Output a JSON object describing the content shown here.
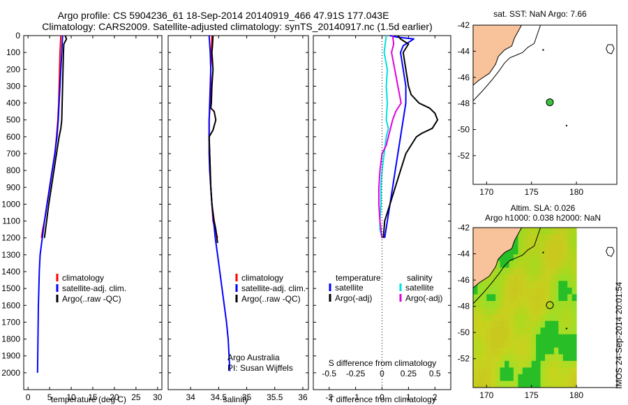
{
  "title_line1": "Argo profile: CS 5904236_61 18-Sep-2014 20140919_466 47.91S 177.043E",
  "title_line2": "Climatology: CARS2009. Satellite-adjusted climatology: synTS_20140917.nc (1.5d earlier)",
  "side_stamp": "IMOS 24-Sep-2014 20:01:54",
  "colors": {
    "climatology": "#ff0000",
    "satellite": "#0000ff",
    "argo": "#000000",
    "sal_satellite": "#00e0e0",
    "sal_argo": "#e000e0",
    "land": "#f8c39a",
    "float_marker": "#3cc43c"
  },
  "chart_data": [
    {
      "id": "temperature",
      "type": "line",
      "xlabel": "temperature (deg C)",
      "ylabel": "",
      "xlim": [
        -1,
        31
      ],
      "ylim": [
        0,
        2100
      ],
      "y_reversed": true,
      "xticks": [
        "0",
        "5",
        "10",
        "15",
        "20",
        "25",
        "30"
      ],
      "yticks": [
        "0",
        "100",
        "200",
        "300",
        "400",
        "500",
        "600",
        "700",
        "800",
        "900",
        "1000",
        "1100",
        "1200",
        "1300",
        "1400",
        "1500",
        "1600",
        "1700",
        "1800",
        "1900",
        "2000"
      ],
      "legend": [
        "climatology",
        "satellite-adj. clim.",
        "Argo(..raw -QC)"
      ],
      "series": [
        {
          "name": "climatology",
          "color": "#ff0000",
          "x": [
            7.6,
            7.5,
            7.4,
            7.3,
            7.2,
            7.1,
            6.9,
            6.6,
            6.2,
            5.6,
            5.0,
            4.4,
            3.8,
            3.4,
            3.1
          ],
          "y": [
            0,
            50,
            100,
            200,
            300,
            400,
            500,
            600,
            700,
            800,
            900,
            1000,
            1100,
            1150,
            1200
          ]
        },
        {
          "name": "satellite-adj. clim.",
          "color": "#0000ff",
          "x": [
            8.0,
            7.9,
            7.8,
            7.6,
            7.4,
            7.2,
            7.0,
            6.7,
            6.2,
            5.6,
            5.0,
            4.4,
            3.8,
            3.3,
            2.8,
            2.6,
            2.5,
            2.4,
            2.3,
            2.2
          ],
          "y": [
            0,
            50,
            100,
            200,
            300,
            400,
            500,
            600,
            700,
            800,
            900,
            1000,
            1100,
            1200,
            1300,
            1400,
            1500,
            1600,
            1800,
            2000
          ]
        },
        {
          "name": "Argo(..raw -QC)",
          "color": "#000000",
          "x": [
            8.6,
            8.9,
            8.3,
            8.2,
            8.1,
            8.0,
            7.9,
            7.8,
            7.6,
            7.2,
            6.6,
            6.0,
            5.4,
            4.8,
            4.3,
            3.8
          ],
          "y": [
            0,
            20,
            50,
            100,
            200,
            300,
            400,
            500,
            550,
            600,
            700,
            800,
            900,
            1000,
            1100,
            1200
          ]
        }
      ],
      "annotations": []
    },
    {
      "id": "salinity",
      "type": "line",
      "xlabel": "salinity",
      "xlim": [
        33.6,
        36.1
      ],
      "ylim": [
        0,
        2100
      ],
      "y_reversed": true,
      "xticks": [
        "34",
        "34.5",
        "35",
        "35.5",
        "36"
      ],
      "legend": [
        "climatology",
        "satellite-adj. clim.",
        "Argo(..raw -QC)"
      ],
      "series": [
        {
          "name": "climatology",
          "color": "#ff0000",
          "x": [
            34.38,
            34.37,
            34.36,
            34.36,
            34.35,
            34.34,
            34.33,
            34.33,
            34.33,
            34.34,
            34.35,
            34.36,
            34.38,
            34.4,
            34.44,
            34.48
          ],
          "y": [
            0,
            100,
            200,
            300,
            400,
            450,
            500,
            550,
            600,
            700,
            800,
            900,
            1000,
            1100,
            1150,
            1200
          ]
        },
        {
          "name": "satellite-adj. clim.",
          "color": "#0000ff",
          "x": [
            34.33,
            34.35,
            34.36,
            34.35,
            34.34,
            34.33,
            34.33,
            34.33,
            34.34,
            34.36,
            34.38,
            34.41,
            34.44,
            34.48,
            34.52,
            34.56,
            34.6,
            34.64,
            34.67,
            34.7
          ],
          "y": [
            0,
            100,
            200,
            300,
            400,
            500,
            600,
            700,
            800,
            900,
            1000,
            1100,
            1200,
            1300,
            1400,
            1500,
            1600,
            1700,
            1800,
            1990
          ]
        },
        {
          "name": "Argo(..raw -QC)",
          "color": "#000000",
          "x": [
            34.4,
            34.39,
            34.38,
            34.4,
            34.38,
            34.37,
            34.36,
            34.42,
            34.45,
            34.4,
            34.33,
            34.34,
            34.35,
            34.36,
            34.38,
            34.42,
            34.45,
            34.48
          ],
          "y": [
            0,
            60,
            100,
            200,
            300,
            400,
            430,
            450,
            500,
            560,
            600,
            700,
            800,
            900,
            1000,
            1100,
            1150,
            1230
          ]
        }
      ],
      "annotations": [
        "Argo Australia",
        "PI: Susan Wijffels"
      ]
    },
    {
      "id": "differences",
      "type": "line",
      "xlabel": "T difference from climatology",
      "xlabel_top": "S difference from climatology",
      "xlim": [
        -2.6,
        2.6
      ],
      "ylim": [
        0,
        2100
      ],
      "y_reversed": true,
      "xticks": [
        "-2",
        "-1",
        "0",
        "1",
        "2"
      ],
      "xticks_top": [
        "-0.5",
        "-0.25",
        "0",
        "0.25",
        "0.5"
      ],
      "legend_groups": [
        {
          "heading": "temperature",
          "items": [
            "satellite",
            "Argo(-adj)"
          ]
        },
        {
          "heading": "salinity",
          "items": [
            "satellite",
            "Argo(-adj)"
          ]
        }
      ],
      "series": [
        {
          "name": "temperature satellite",
          "color": "#0000ff",
          "x": [
            0.3,
            0.6,
            1.2,
            1.0,
            0.8,
            0.7,
            0.8,
            0.9,
            0.9,
            0.8,
            0.7,
            0.6,
            0.5,
            0.4,
            0.3,
            0.2,
            0.1
          ],
          "y": [
            0,
            10,
            20,
            40,
            60,
            100,
            200,
            300,
            400,
            500,
            600,
            700,
            800,
            900,
            1000,
            1100,
            1200
          ]
        },
        {
          "name": "temperature Argo(-adj)",
          "color": "#000000",
          "x": [
            0.6,
            0.7,
            1.0,
            0.8,
            0.9,
            1.0,
            1.1,
            1.4,
            1.8,
            2.0,
            2.1,
            1.9,
            1.5,
            1.3,
            1.1,
            0.9,
            0.7,
            0.5,
            0.3,
            0.1,
            0.05
          ],
          "y": [
            0,
            20,
            50,
            100,
            200,
            300,
            350,
            400,
            430,
            460,
            500,
            550,
            580,
            600,
            650,
            700,
            800,
            900,
            1000,
            1100,
            1200
          ]
        },
        {
          "name": "salinity satellite",
          "color": "#00e0e0",
          "x": [
            0.04,
            0.02,
            0.05,
            0.04,
            0.05,
            0.04,
            0.06,
            0.04,
            0.02,
            0.0,
            -0.01,
            -0.01,
            -0.02,
            -0.02,
            0.0
          ],
          "y": [
            0,
            100,
            200,
            300,
            400,
            500,
            550,
            600,
            700,
            800,
            900,
            1000,
            1100,
            1150,
            1200
          ]
        },
        {
          "name": "salinity Argo(-adj)",
          "color": "#e000e0",
          "x": [
            0.1,
            0.11,
            0.09,
            0.12,
            0.15,
            0.18,
            0.13,
            0.1,
            0.06,
            0.04,
            0.0,
            -0.02,
            -0.03,
            -0.03,
            -0.02,
            0.0
          ],
          "y": [
            0,
            50,
            100,
            200,
            300,
            400,
            450,
            500,
            600,
            650,
            700,
            800,
            900,
            1000,
            1100,
            1200
          ]
        }
      ],
      "annotations": []
    },
    {
      "id": "sst_map",
      "type": "scatter",
      "title": "sat. SST: NaN Argo: 7.66",
      "xlim": [
        168.5,
        184.5
      ],
      "ylim": [
        -54.2,
        -42
      ],
      "xticks": [
        "170",
        "175",
        "180"
      ],
      "yticks": [
        "-42",
        "-44",
        "-46",
        "-48",
        "-50",
        "-52"
      ],
      "float_position": {
        "lon": 177.043,
        "lat": -47.91
      }
    },
    {
      "id": "sla_map",
      "type": "heatmap",
      "title": "Altim. SLA: 0.026",
      "subtitle": "Argo h1000: 0.038 h2000: NaN",
      "xlim": [
        168.5,
        184.5
      ],
      "ylim": [
        -54.2,
        -42
      ],
      "xticks": [
        "170",
        "175",
        "180"
      ],
      "yticks": [
        "-42",
        "-44",
        "-46",
        "-48",
        "-50",
        "-52"
      ],
      "float_position": {
        "lon": 177.043,
        "lat": -47.91
      }
    }
  ]
}
